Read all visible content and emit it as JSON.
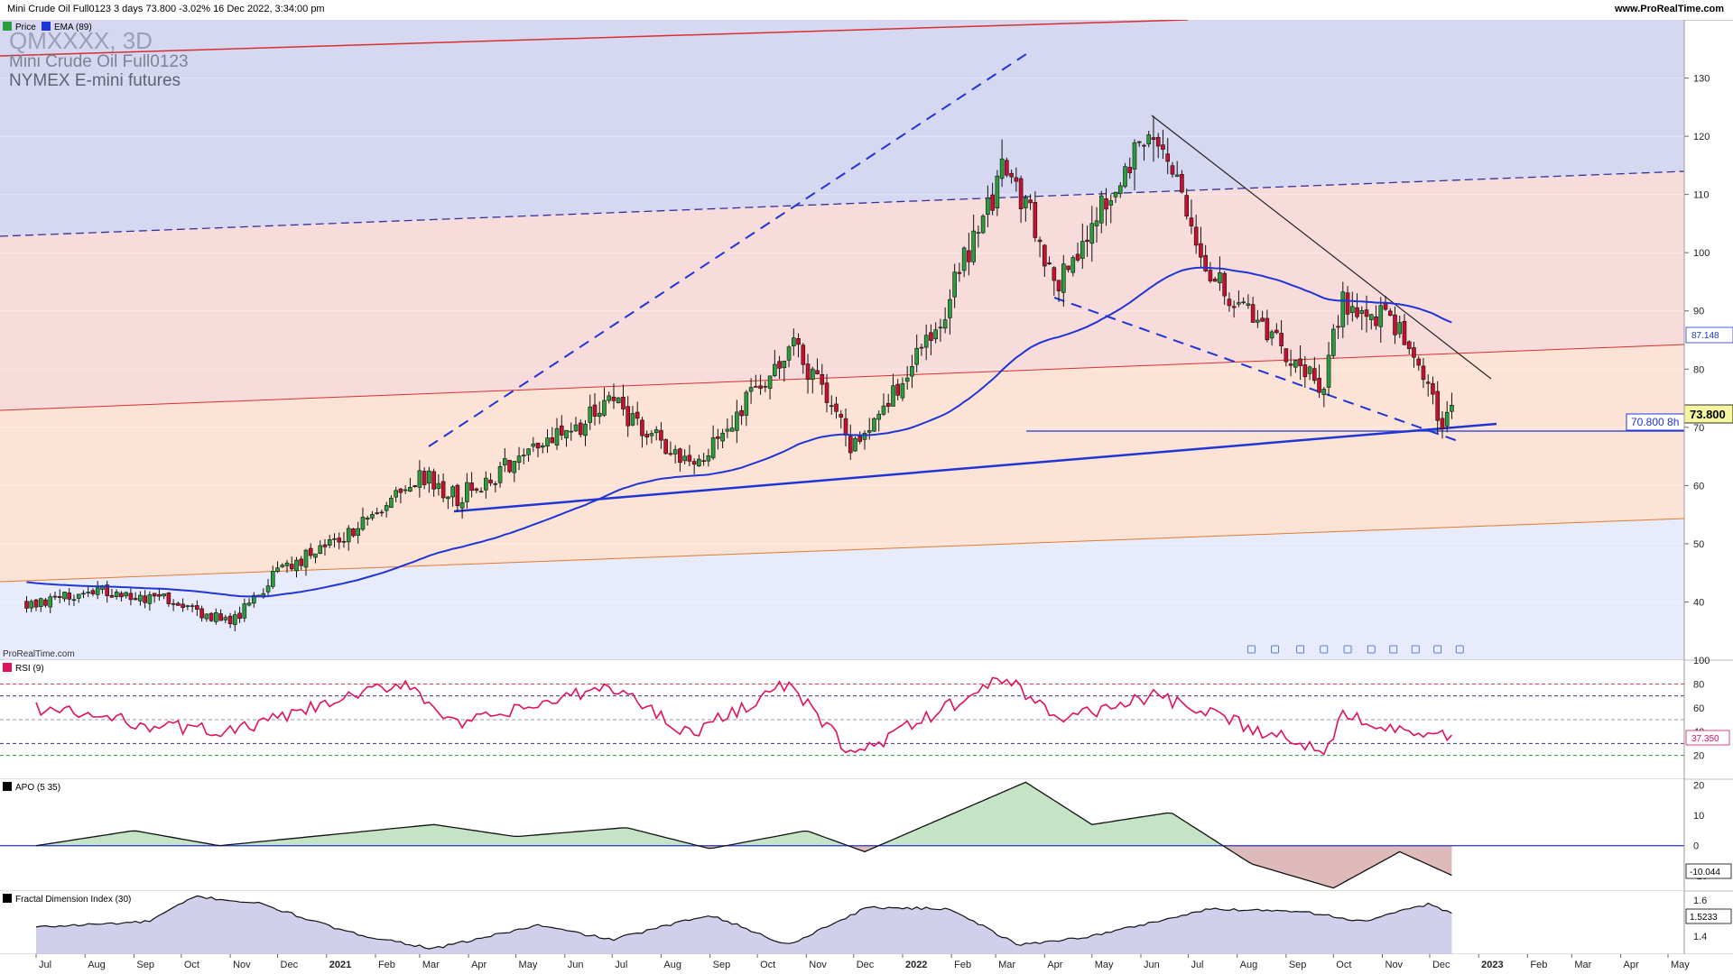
{
  "header": {
    "title": "Mini Crude Oil Full0123 3 days 73.800 -3.02% 16 Dec 2022, 3:34:00 pm",
    "site": "www.ProRealTime.com"
  },
  "price_panel": {
    "symbol": "QMXXXX, 3D",
    "name": "Mini Crude Oil Full0123",
    "exchange": "NYMEX E-mini futures",
    "watermark": "ProRealTime.com",
    "legend": [
      {
        "label": "Price",
        "color": "#2a9d3c"
      },
      {
        "label": "EMA (89)",
        "color": "#1f35d4"
      }
    ],
    "last_price_label": "73.800",
    "ema_label": "87.148",
    "support_label": "70.800 8h"
  },
  "rsi_panel": {
    "title": "RSI (9)",
    "value_label": "37.350",
    "ticks": [
      "100",
      "80",
      "60",
      "40",
      "20"
    ]
  },
  "apo_panel": {
    "title": "APO (5 35)",
    "value_label": "-10.044",
    "ticks": [
      "20",
      "10",
      "0",
      "-10"
    ]
  },
  "fdi_panel": {
    "title": "Fractal Dimension Index (30)",
    "value_label": "1.5233",
    "ticks": [
      "1.6",
      "1.4"
    ]
  },
  "x_axis": {
    "labels": [
      "Jul",
      "Aug",
      "Sep",
      "Oct",
      "Nov",
      "Dec",
      "2021",
      "Feb",
      "Mar",
      "Apr",
      "May",
      "Jun",
      "Jul",
      "Aug",
      "Sep",
      "Oct",
      "Nov",
      "Dec",
      "2022",
      "Feb",
      "Mar",
      "Apr",
      "May",
      "Jun",
      "Jul",
      "Aug",
      "Sep",
      "Oct",
      "Nov",
      "Dec",
      "2023",
      "Feb",
      "Mar",
      "Apr",
      "May"
    ]
  },
  "chart_data": [
    {
      "type": "candlestick",
      "title": "Mini Crude Oil Full0123 3 days",
      "ylim": [
        30,
        140
      ],
      "y_ticks": [
        40,
        50,
        60,
        70,
        80,
        90,
        100,
        110,
        120,
        130
      ],
      "last": 73.8,
      "change_pct": -3.02,
      "ema89_last": 87.148,
      "support_level": 70.8,
      "approx_close_path": [
        {
          "date": "2020-07-01",
          "close": 40
        },
        {
          "date": "2020-08-15",
          "close": 42
        },
        {
          "date": "2020-10-01",
          "close": 40
        },
        {
          "date": "2020-11-01",
          "close": 36
        },
        {
          "date": "2020-12-01",
          "close": 45
        },
        {
          "date": "2021-01-15",
          "close": 52
        },
        {
          "date": "2021-03-01",
          "close": 62
        },
        {
          "date": "2021-03-25",
          "close": 58
        },
        {
          "date": "2021-05-01",
          "close": 64
        },
        {
          "date": "2021-07-01",
          "close": 74
        },
        {
          "date": "2021-08-20",
          "close": 63
        },
        {
          "date": "2021-10-25",
          "close": 84
        },
        {
          "date": "2021-12-01",
          "close": 66
        },
        {
          "date": "2022-01-20",
          "close": 86
        },
        {
          "date": "2022-03-08",
          "close": 115
        },
        {
          "date": "2022-04-10",
          "close": 95
        },
        {
          "date": "2022-06-08",
          "close": 122
        },
        {
          "date": "2022-07-15",
          "close": 96
        },
        {
          "date": "2022-09-25",
          "close": 77
        },
        {
          "date": "2022-10-07",
          "close": 92
        },
        {
          "date": "2022-11-08",
          "close": 88
        },
        {
          "date": "2022-12-09",
          "close": 71
        },
        {
          "date": "2022-12-16",
          "close": 73.8
        }
      ]
    },
    {
      "type": "line",
      "title": "RSI (9)",
      "ylim": [
        0,
        100
      ],
      "last": 37.35,
      "approx_series": [
        {
          "date": "2020-07-01",
          "value": 60
        },
        {
          "date": "2020-09-15",
          "value": 45
        },
        {
          "date": "2020-11-03",
          "value": 40
        },
        {
          "date": "2021-02-20",
          "value": 82
        },
        {
          "date": "2021-03-25",
          "value": 45
        },
        {
          "date": "2021-07-01",
          "value": 78
        },
        {
          "date": "2021-08-20",
          "value": 38
        },
        {
          "date": "2021-10-20",
          "value": 80
        },
        {
          "date": "2021-12-01",
          "value": 20
        },
        {
          "date": "2022-03-08",
          "value": 86
        },
        {
          "date": "2022-04-10",
          "value": 50
        },
        {
          "date": "2022-06-08",
          "value": 70
        },
        {
          "date": "2022-09-25",
          "value": 24
        },
        {
          "date": "2022-10-07",
          "value": 55
        },
        {
          "date": "2022-12-09",
          "value": 35
        },
        {
          "date": "2022-12-16",
          "value": 37.35
        }
      ]
    },
    {
      "type": "area",
      "title": "APO (5 35)",
      "ylim": [
        -15,
        22
      ],
      "last": -10.044,
      "approx_series": [
        {
          "date": "2020-07-01",
          "value": 0
        },
        {
          "date": "2020-09-01",
          "value": 5
        },
        {
          "date": "2020-10-25",
          "value": 0
        },
        {
          "date": "2021-03-10",
          "value": 7
        },
        {
          "date": "2021-05-01",
          "value": 3
        },
        {
          "date": "2021-07-10",
          "value": 6
        },
        {
          "date": "2021-09-01",
          "value": -1
        },
        {
          "date": "2021-11-01",
          "value": 5
        },
        {
          "date": "2021-12-08",
          "value": -2
        },
        {
          "date": "2022-03-20",
          "value": 21
        },
        {
          "date": "2022-05-01",
          "value": 7
        },
        {
          "date": "2022-06-20",
          "value": 11
        },
        {
          "date": "2022-08-10",
          "value": -6
        },
        {
          "date": "2022-10-01",
          "value": -14
        },
        {
          "date": "2022-11-12",
          "value": -2
        },
        {
          "date": "2022-12-16",
          "value": -10.044
        }
      ]
    },
    {
      "type": "area",
      "title": "Fractal Dimension Index (30)",
      "ylim": [
        1.3,
        1.65
      ],
      "last": 1.5233,
      "approx_series": [
        {
          "date": "2020-07-01",
          "value": 1.45
        },
        {
          "date": "2020-09-10",
          "value": 1.48
        },
        {
          "date": "2020-10-10",
          "value": 1.62
        },
        {
          "date": "2020-11-20",
          "value": 1.58
        },
        {
          "date": "2021-01-15",
          "value": 1.42
        },
        {
          "date": "2021-03-10",
          "value": 1.33
        },
        {
          "date": "2021-05-15",
          "value": 1.46
        },
        {
          "date": "2021-07-01",
          "value": 1.38
        },
        {
          "date": "2021-09-01",
          "value": 1.52
        },
        {
          "date": "2021-10-20",
          "value": 1.35
        },
        {
          "date": "2021-12-10",
          "value": 1.56
        },
        {
          "date": "2022-02-01",
          "value": 1.55
        },
        {
          "date": "2022-03-15",
          "value": 1.35
        },
        {
          "date": "2022-05-01",
          "value": 1.4
        },
        {
          "date": "2022-07-15",
          "value": 1.55
        },
        {
          "date": "2022-09-10",
          "value": 1.54
        },
        {
          "date": "2022-10-20",
          "value": 1.48
        },
        {
          "date": "2022-12-01",
          "value": 1.58
        },
        {
          "date": "2022-12-16",
          "value": 1.5233
        }
      ]
    }
  ]
}
